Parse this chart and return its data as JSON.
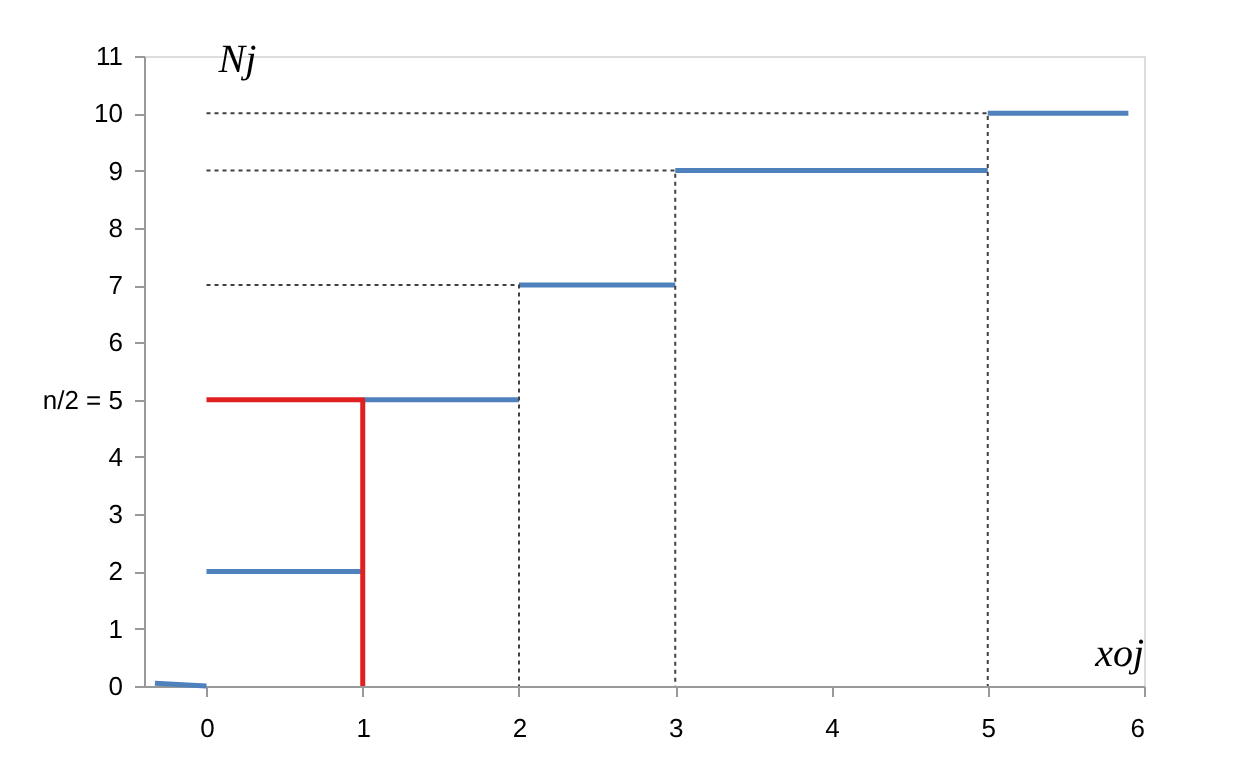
{
  "chart_data": {
    "type": "line",
    "xlabel": "xoj",
    "ylabel": "Nj",
    "xlim": [
      -0.4,
      6
    ],
    "xticks": [
      0,
      1,
      2,
      3,
      4,
      5,
      6
    ],
    "ylim": [
      0,
      11
    ],
    "yticks": [
      0,
      1,
      2,
      3,
      4,
      {
        "value": 5,
        "label": "n/2 = 5"
      },
      6,
      7,
      8,
      9,
      10,
      11
    ],
    "grid": false,
    "marker": "none",
    "series": [
      {
        "color": "#4f81bd",
        "line_style": "solid",
        "x": [
          -0.33,
          0
        ],
        "values": [
          0.05,
          0
        ]
      },
      {
        "color": "#4f81bd",
        "line_style": "solid",
        "x": [
          0,
          1
        ],
        "values": [
          2,
          2
        ]
      },
      {
        "color": "#4f81bd",
        "line_style": "solid",
        "x": [
          1,
          2
        ],
        "values": [
          5,
          5
        ]
      },
      {
        "color": "#4f81bd",
        "line_style": "solid",
        "x": [
          2,
          3
        ],
        "values": [
          7,
          7
        ]
      },
      {
        "color": "#4f81bd",
        "line_style": "solid",
        "x": [
          3,
          5
        ],
        "values": [
          9,
          9
        ]
      },
      {
        "color": "#4f81bd",
        "line_style": "solid",
        "x": [
          5,
          5.9
        ],
        "values": [
          10,
          10
        ]
      },
      {
        "color": "#404040",
        "line_style": "dotted",
        "x": [
          0,
          2,
          2
        ],
        "values": [
          7,
          7,
          0
        ]
      },
      {
        "color": "#404040",
        "line_style": "dotted",
        "x": [
          0,
          3,
          3
        ],
        "values": [
          9,
          9,
          0
        ]
      },
      {
        "color": "#404040",
        "line_style": "dotted",
        "x": [
          0,
          5,
          5
        ],
        "values": [
          10,
          10,
          0
        ]
      },
      {
        "color": "#e02020",
        "line_style": "solid",
        "x": [
          0,
          1,
          1
        ],
        "values": [
          5,
          5,
          0
        ]
      }
    ]
  }
}
